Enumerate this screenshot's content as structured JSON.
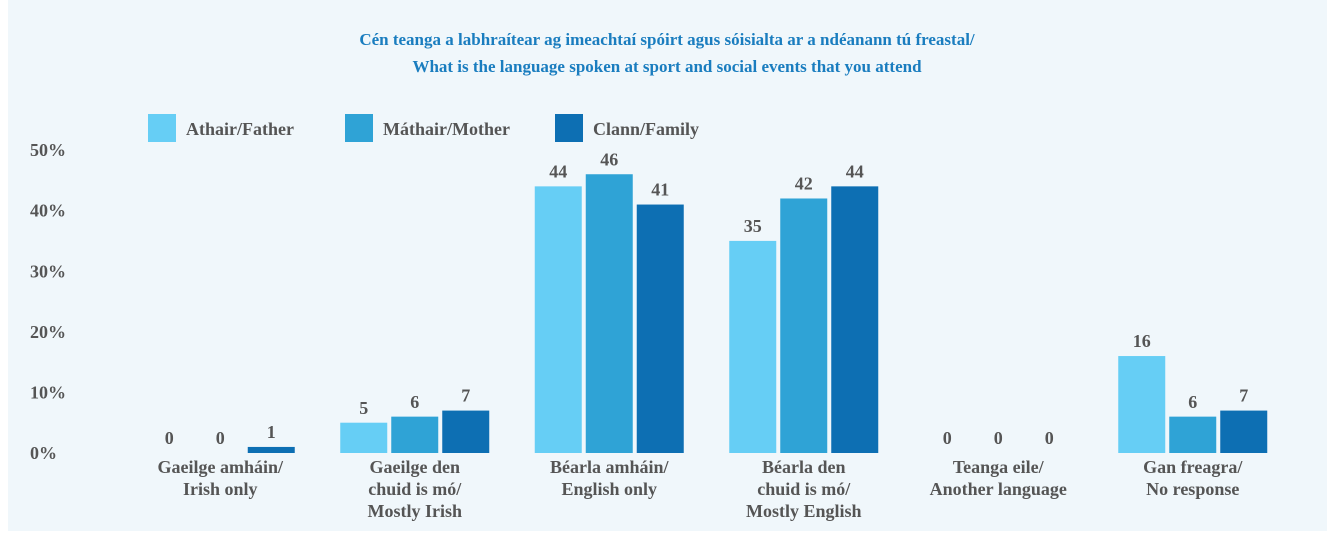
{
  "chart_data": {
    "type": "bar",
    "title": [
      "Cén teanga a labhraítear ag imeachtaí spóirt agus sóisialta ar a ndéanann tú freastal/",
      "What is the language spoken at sport and social events that you attend"
    ],
    "categories": [
      [
        "Gaeilge amháin/",
        "Irish only"
      ],
      [
        "Gaeilge den",
        "chuid is mó/",
        "Mostly Irish"
      ],
      [
        "Béarla amháin/",
        "English only"
      ],
      [
        "Béarla den",
        "chuid is mó/",
        "Mostly English"
      ],
      [
        "Teanga eile/",
        "Another language"
      ],
      [
        "Gan freagra/",
        "No response"
      ]
    ],
    "series": [
      {
        "name": "Athair/Father",
        "color": "#66cef5",
        "values": [
          0,
          5,
          44,
          35,
          0,
          16
        ]
      },
      {
        "name": "Máthair/Mother",
        "color": "#2fa3d6",
        "values": [
          0,
          6,
          46,
          42,
          0,
          6
        ]
      },
      {
        "name": "Clann/Family",
        "color": "#0d6fb3",
        "values": [
          1,
          7,
          41,
          44,
          0,
          7
        ]
      }
    ],
    "ylim": [
      0,
      50
    ],
    "yticks": [
      {
        "value": 0,
        "label": "0%"
      },
      {
        "value": 10,
        "label": "10%"
      },
      {
        "value": 20,
        "label": "20%"
      },
      {
        "value": 30,
        "label": "30%"
      },
      {
        "value": 40,
        "label": "40%"
      },
      {
        "value": 50,
        "label": "50%"
      }
    ],
    "grid": false,
    "legend": "top"
  }
}
